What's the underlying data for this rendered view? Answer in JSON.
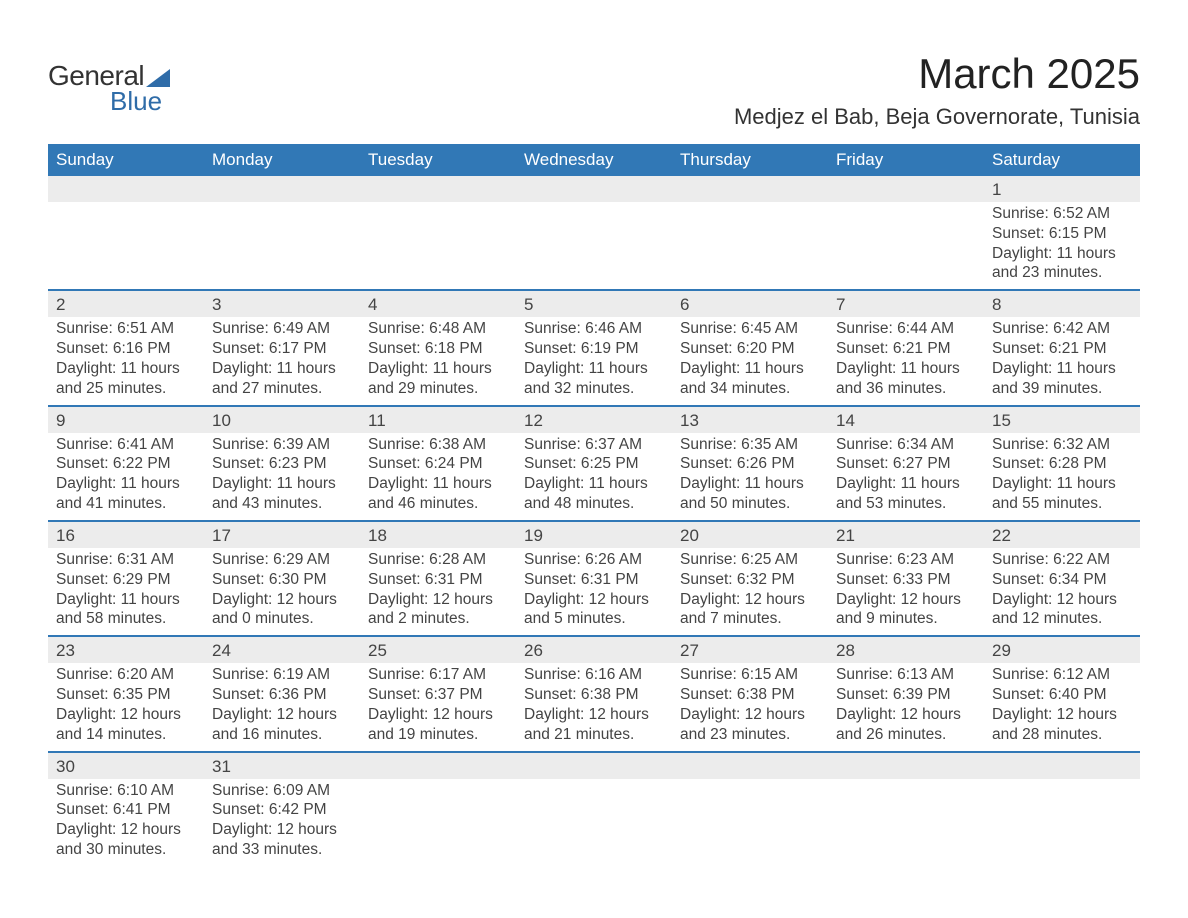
{
  "logo": {
    "text_general": "General",
    "text_blue": "Blue",
    "shape_color": "#2f6ca8"
  },
  "title": "March 2025",
  "subtitle": "Medjez el Bab, Beja Governorate, Tunisia",
  "colors": {
    "header_bg": "#3178b6",
    "header_text": "#ffffff",
    "daynum_bg": "#ececec",
    "border": "#3178b6",
    "text": "#444444"
  },
  "day_headers": [
    "Sunday",
    "Monday",
    "Tuesday",
    "Wednesday",
    "Thursday",
    "Friday",
    "Saturday"
  ],
  "weeks": [
    {
      "nums": [
        "",
        "",
        "",
        "",
        "",
        "",
        "1"
      ],
      "cells": [
        "",
        "",
        "",
        "",
        "",
        "",
        "Sunrise: 6:52 AM\nSunset: 6:15 PM\nDaylight: 11 hours and 23 minutes."
      ]
    },
    {
      "nums": [
        "2",
        "3",
        "4",
        "5",
        "6",
        "7",
        "8"
      ],
      "cells": [
        "Sunrise: 6:51 AM\nSunset: 6:16 PM\nDaylight: 11 hours and 25 minutes.",
        "Sunrise: 6:49 AM\nSunset: 6:17 PM\nDaylight: 11 hours and 27 minutes.",
        "Sunrise: 6:48 AM\nSunset: 6:18 PM\nDaylight: 11 hours and 29 minutes.",
        "Sunrise: 6:46 AM\nSunset: 6:19 PM\nDaylight: 11 hours and 32 minutes.",
        "Sunrise: 6:45 AM\nSunset: 6:20 PM\nDaylight: 11 hours and 34 minutes.",
        "Sunrise: 6:44 AM\nSunset: 6:21 PM\nDaylight: 11 hours and 36 minutes.",
        "Sunrise: 6:42 AM\nSunset: 6:21 PM\nDaylight: 11 hours and 39 minutes."
      ]
    },
    {
      "nums": [
        "9",
        "10",
        "11",
        "12",
        "13",
        "14",
        "15"
      ],
      "cells": [
        "Sunrise: 6:41 AM\nSunset: 6:22 PM\nDaylight: 11 hours and 41 minutes.",
        "Sunrise: 6:39 AM\nSunset: 6:23 PM\nDaylight: 11 hours and 43 minutes.",
        "Sunrise: 6:38 AM\nSunset: 6:24 PM\nDaylight: 11 hours and 46 minutes.",
        "Sunrise: 6:37 AM\nSunset: 6:25 PM\nDaylight: 11 hours and 48 minutes.",
        "Sunrise: 6:35 AM\nSunset: 6:26 PM\nDaylight: 11 hours and 50 minutes.",
        "Sunrise: 6:34 AM\nSunset: 6:27 PM\nDaylight: 11 hours and 53 minutes.",
        "Sunrise: 6:32 AM\nSunset: 6:28 PM\nDaylight: 11 hours and 55 minutes."
      ]
    },
    {
      "nums": [
        "16",
        "17",
        "18",
        "19",
        "20",
        "21",
        "22"
      ],
      "cells": [
        "Sunrise: 6:31 AM\nSunset: 6:29 PM\nDaylight: 11 hours and 58 minutes.",
        "Sunrise: 6:29 AM\nSunset: 6:30 PM\nDaylight: 12 hours and 0 minutes.",
        "Sunrise: 6:28 AM\nSunset: 6:31 PM\nDaylight: 12 hours and 2 minutes.",
        "Sunrise: 6:26 AM\nSunset: 6:31 PM\nDaylight: 12 hours and 5 minutes.",
        "Sunrise: 6:25 AM\nSunset: 6:32 PM\nDaylight: 12 hours and 7 minutes.",
        "Sunrise: 6:23 AM\nSunset: 6:33 PM\nDaylight: 12 hours and 9 minutes.",
        "Sunrise: 6:22 AM\nSunset: 6:34 PM\nDaylight: 12 hours and 12 minutes."
      ]
    },
    {
      "nums": [
        "23",
        "24",
        "25",
        "26",
        "27",
        "28",
        "29"
      ],
      "cells": [
        "Sunrise: 6:20 AM\nSunset: 6:35 PM\nDaylight: 12 hours and 14 minutes.",
        "Sunrise: 6:19 AM\nSunset: 6:36 PM\nDaylight: 12 hours and 16 minutes.",
        "Sunrise: 6:17 AM\nSunset: 6:37 PM\nDaylight: 12 hours and 19 minutes.",
        "Sunrise: 6:16 AM\nSunset: 6:38 PM\nDaylight: 12 hours and 21 minutes.",
        "Sunrise: 6:15 AM\nSunset: 6:38 PM\nDaylight: 12 hours and 23 minutes.",
        "Sunrise: 6:13 AM\nSunset: 6:39 PM\nDaylight: 12 hours and 26 minutes.",
        "Sunrise: 6:12 AM\nSunset: 6:40 PM\nDaylight: 12 hours and 28 minutes."
      ]
    },
    {
      "nums": [
        "30",
        "31",
        "",
        "",
        "",
        "",
        ""
      ],
      "cells": [
        "Sunrise: 6:10 AM\nSunset: 6:41 PM\nDaylight: 12 hours and 30 minutes.",
        "Sunrise: 6:09 AM\nSunset: 6:42 PM\nDaylight: 12 hours and 33 minutes.",
        "",
        "",
        "",
        "",
        ""
      ]
    }
  ]
}
